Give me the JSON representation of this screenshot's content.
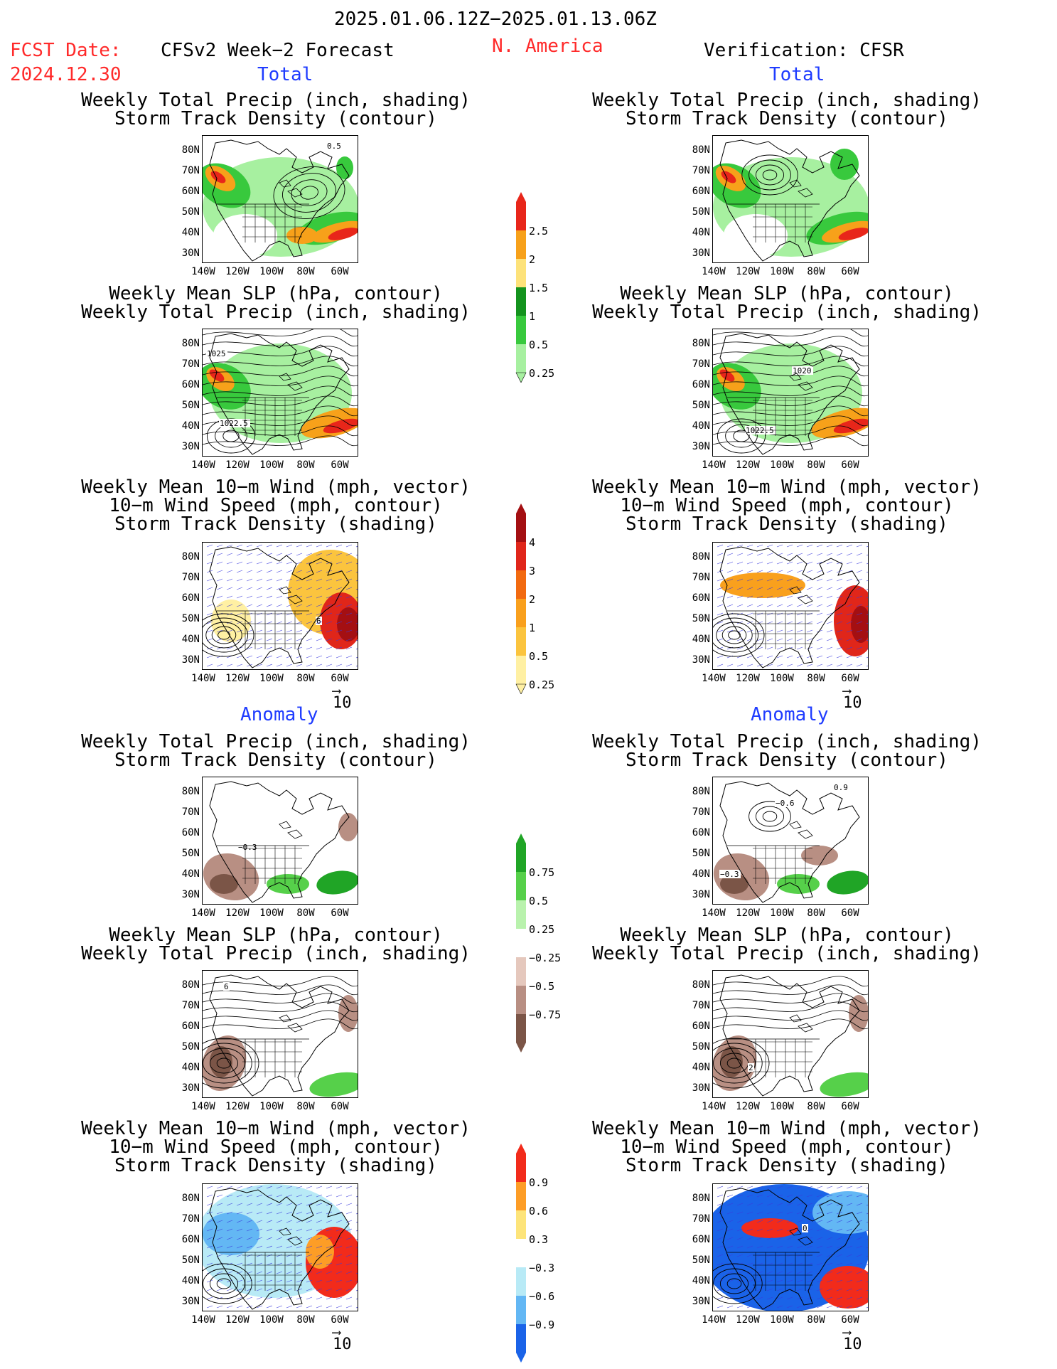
{
  "header": {
    "period": "2025.01.06.12Z−2025.01.13.06Z",
    "fcst_label": "FCST Date:",
    "fcst_date": "2024.12.30",
    "model": "CFSv2 Week−2 Forecast",
    "region": "N. America",
    "verification": "Verification: CFSR"
  },
  "sections": {
    "total": "Total",
    "anomaly": "Anomaly"
  },
  "titles": {
    "precip_storm": [
      "Weekly Total Precip (inch, shading)",
      "Storm Track Density (contour)"
    ],
    "slp_precip": [
      "Weekly Mean SLP (hPa, contour)",
      "Weekly Total Precip (inch, shading)"
    ],
    "wind_storm": [
      "Weekly Mean 10−m Wind (mph, vector)",
      "10−m Wind Speed (mph, contour)",
      "Storm Track Density (shading)"
    ]
  },
  "axes": {
    "lat": [
      "80N",
      "70N",
      "60N",
      "50N",
      "40N",
      "30N"
    ],
    "lon": [
      "140W",
      "120W",
      "100W",
      "80W",
      "60W"
    ]
  },
  "vector_ref": "10",
  "map_labels": {
    "fc_total_precip": "0.5",
    "fc_total_slp_a": "1025",
    "fc_total_slp_b": "1022.5",
    "vf_total_slp_a": "1020",
    "vf_total_slp_b": "1022.5",
    "fc_anom_precip": "−0.3",
    "vf_anom_precip_a": "−0.6",
    "vf_anom_precip_b": "−0.3",
    "vf_anom_precip_c": "0.9",
    "fc_anom_slp": "6",
    "vf_anom_slp": "2",
    "fc_total_wind": "6",
    "vf_anom_wind": "0"
  },
  "colorbars": {
    "precip_total": {
      "labels": [
        "2.5",
        "2",
        "1.5",
        "1",
        "0.5",
        "0.25"
      ],
      "colors": [
        "#e8261a",
        "#f7a11a",
        "#fde27a",
        "#14931e",
        "#38c93d",
        "#a7f0a0"
      ]
    },
    "storm_total": {
      "labels": [
        "4",
        "3",
        "2",
        "1",
        "0.5",
        "0.25"
      ],
      "colors": [
        "#a40f12",
        "#e0261a",
        "#f26a10",
        "#f9a01d",
        "#fbc43e",
        "#fff0a3"
      ]
    },
    "precip_anom": {
      "labels": [
        "0.75",
        "0.5",
        "0.25",
        "−0.25",
        "−0.5",
        "−0.75"
      ],
      "colors": [
        "#20a526",
        "#56d04a",
        "#b9f2ad",
        "#ffffff",
        "#e5c8bd",
        "#b88f83",
        "#7b5547"
      ]
    },
    "storm_anom": {
      "labels": [
        "0.9",
        "0.6",
        "0.3",
        "−0.3",
        "−0.6",
        "−0.9"
      ],
      "colors": [
        "#f22b1b",
        "#fd9d26",
        "#fde47a",
        "#ffffff",
        "#b8eaf6",
        "#63b7f4",
        "#1a63e8"
      ]
    }
  }
}
